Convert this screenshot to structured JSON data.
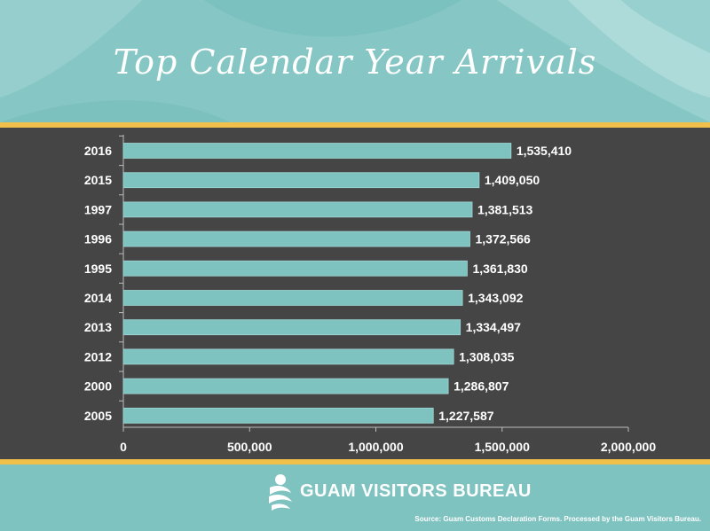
{
  "header": {
    "title": "Top Calendar Year Arrivals"
  },
  "footer": {
    "brand": "GUAM VISITORS BUREAU",
    "source": "Source: Guam Customs Declaration Forms. Processed by the Guam Visitors Bureau."
  },
  "colors": {
    "bar": "#7fc3c1",
    "panel": "#454545",
    "accent": "#f0c04a",
    "text": "#ffffff"
  },
  "chart_data": {
    "type": "bar",
    "orientation": "horizontal",
    "categories": [
      "2016",
      "2015",
      "1997",
      "1996",
      "1995",
      "2014",
      "2013",
      "2012",
      "2000",
      "2005"
    ],
    "values": [
      1535410,
      1409050,
      1381513,
      1372566,
      1361830,
      1343092,
      1334497,
      1308035,
      1286807,
      1227587
    ],
    "value_labels": [
      "1,535,410",
      "1,409,050",
      "1,381,513",
      "1,372,566",
      "1,361,830",
      "1,343,092",
      "1,334,497",
      "1,308,035",
      "1,286,807",
      "1,227,587"
    ],
    "xlim": [
      0,
      2000000
    ],
    "xticks": [
      0,
      500000,
      1000000,
      1500000,
      2000000
    ],
    "xtick_labels": [
      "0",
      "500,000",
      "1,000,000",
      "1,500,000",
      "2,000,000"
    ],
    "title": "Top Calendar Year Arrivals",
    "xlabel": "",
    "ylabel": "",
    "grid": false,
    "legend": "none"
  }
}
